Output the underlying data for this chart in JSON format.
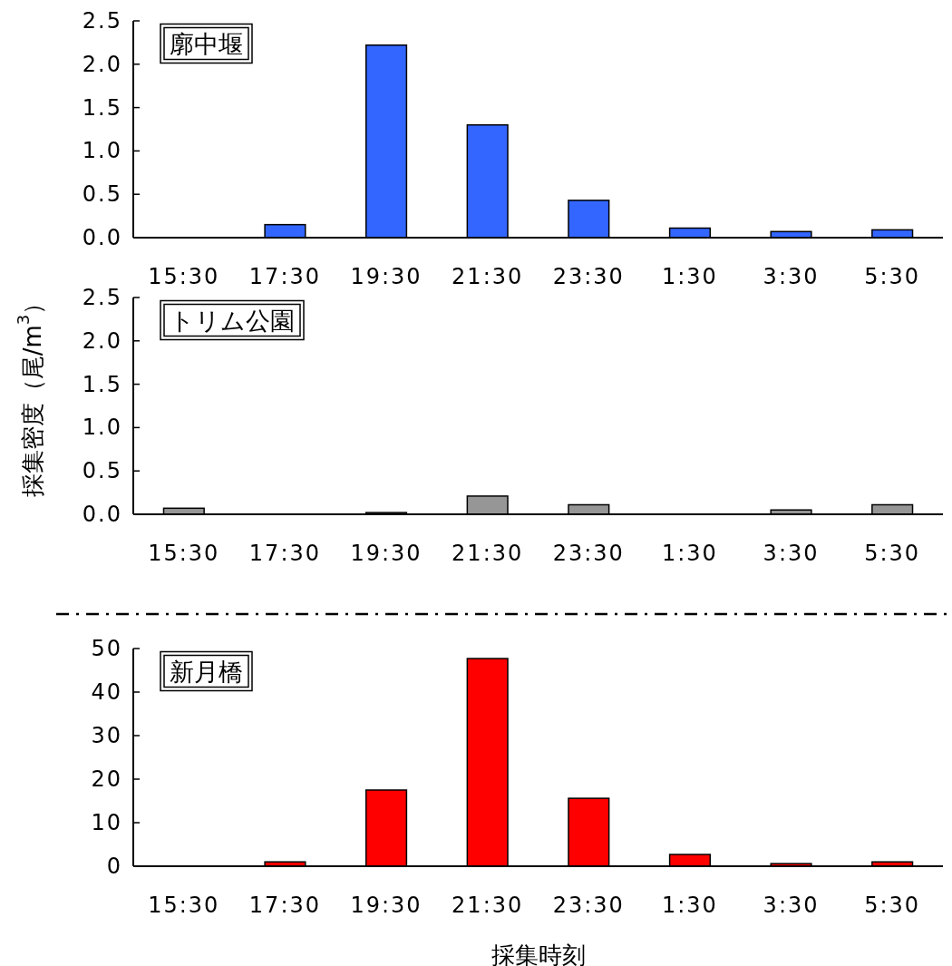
{
  "chart_data": [
    {
      "type": "bar",
      "title": "廓中堰",
      "categories": [
        "15:30",
        "17:30",
        "19:30",
        "21:30",
        "23:30",
        "1:30",
        "3:30",
        "5:30"
      ],
      "values": [
        0,
        0.15,
        2.22,
        1.3,
        0.43,
        0.11,
        0.07,
        0.09
      ],
      "color": "#3366ff",
      "ylim": [
        0,
        2.5
      ],
      "yticks": [
        {
          "value": 0,
          "label": "0.0"
        },
        {
          "value": 0.5,
          "label": "0.5"
        },
        {
          "value": 1,
          "label": "1.0"
        },
        {
          "value": 1.5,
          "label": "1.5"
        },
        {
          "value": 2,
          "label": "2.0"
        },
        {
          "value": 2.5,
          "label": "2.5"
        }
      ]
    },
    {
      "type": "bar",
      "title": "トリム公園",
      "ylabel": "採集密度（尾/m$^{3}$）",
      "categories": [
        "15:30",
        "17:30",
        "19:30",
        "21:30",
        "23:30",
        "1:30",
        "3:30",
        "5:30"
      ],
      "values": [
        0.07,
        0,
        0.02,
        0.21,
        0.11,
        0,
        0.05,
        0.11
      ],
      "color": "#969696",
      "ylim": [
        0,
        2.5
      ],
      "yticks": [
        {
          "value": 0,
          "label": "0.0"
        },
        {
          "value": 0.5,
          "label": "0.5"
        },
        {
          "value": 1,
          "label": "1.0"
        },
        {
          "value": 1.5,
          "label": "1.5"
        },
        {
          "value": 2,
          "label": "2.0"
        },
        {
          "value": 2.5,
          "label": "2.5"
        }
      ]
    },
    {
      "type": "bar",
      "title": "新月橋",
      "xlabel": "採集時刻",
      "categories": [
        "15:30",
        "17:30",
        "19:30",
        "21:30",
        "23:30",
        "1:30",
        "3:30",
        "5:30"
      ],
      "values": [
        0,
        1.0,
        17.5,
        47.7,
        15.6,
        2.7,
        0.6,
        1.0
      ],
      "color": "#ff0000",
      "ylim": [
        0,
        50
      ],
      "yticks": [
        0,
        10,
        20,
        30,
        40,
        50
      ]
    }
  ]
}
